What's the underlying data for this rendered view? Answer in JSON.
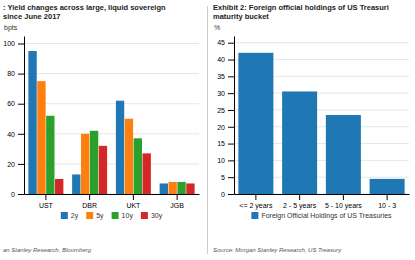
{
  "chart_data": [
    {
      "type": "bar",
      "title": ":  Yield changes across large, liquid sovereign",
      "subtitle": "since June 2017",
      "ylabel": "bpts",
      "annotations": [
        "an Stanley Research, Bloomberg"
      ],
      "categories": [
        "UST",
        "DBR",
        "UKT",
        "JGB"
      ],
      "series": [
        {
          "name": "2y",
          "values": [
            95,
            13,
            62,
            7
          ]
        },
        {
          "name": "5y",
          "values": [
            75,
            40,
            50,
            8
          ]
        },
        {
          "name": "10y",
          "values": [
            52,
            42,
            37,
            8
          ]
        },
        {
          "name": "30y",
          "values": [
            10,
            32,
            27,
            7
          ]
        }
      ],
      "ylim": [
        0,
        105
      ],
      "yticks": [
        0,
        20,
        40,
        60,
        80,
        100
      ],
      "grid": true,
      "legend": "bottom"
    },
    {
      "type": "bar",
      "title": "Exhibit 2:  Foreign official holdings of US Treasuri",
      "subtitle": "maturity bucket",
      "ylabel": "%",
      "annotations": [
        "Source: Morgan Stanley Research, US Treasury"
      ],
      "categories": [
        "<= 2 years",
        "2 - 5 years",
        "5 - 10 years",
        "10 - 3"
      ],
      "series": [
        {
          "name": "Foreign Official Holdings of US Treasuries",
          "values": [
            42,
            30.5,
            23.5,
            4.5
          ]
        }
      ],
      "ylim": [
        0,
        47
      ],
      "yticks": [
        0,
        5,
        10,
        15,
        20,
        25,
        30,
        35,
        40,
        45
      ],
      "grid": true,
      "legend": "bottom"
    }
  ]
}
